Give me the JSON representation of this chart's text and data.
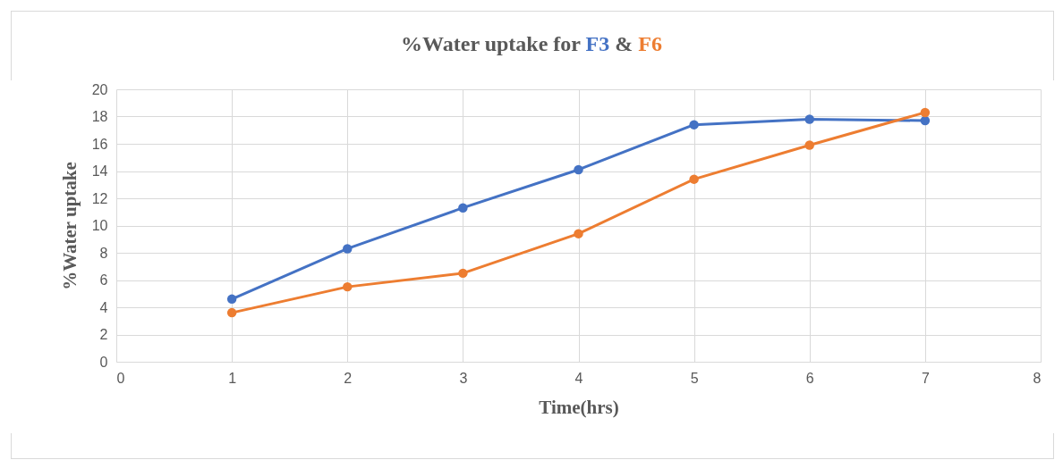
{
  "chart_data": {
    "type": "line",
    "title": "%Water uptake for",
    "annotations": [
      "&"
    ],
    "xlabel": "Time(hrs)",
    "ylabel": "%Water uptake",
    "x": [
      1,
      2,
      3,
      4,
      5,
      6,
      7
    ],
    "series": [
      {
        "name": "F3",
        "color": "#4472c4",
        "values": [
          4.6,
          8.3,
          11.3,
          14.1,
          17.4,
          17.8,
          17.7
        ]
      },
      {
        "name": "F6",
        "color": "#ed7d31",
        "values": [
          3.6,
          5.5,
          6.5,
          9.4,
          13.4,
          15.9,
          18.3
        ]
      }
    ],
    "xlim": [
      0,
      8
    ],
    "xticks": [
      0,
      1,
      2,
      3,
      4,
      5,
      6,
      7,
      8
    ],
    "ylim": [
      0,
      20
    ],
    "yticks": [
      0,
      2,
      4,
      6,
      8,
      10,
      12,
      14,
      16,
      18,
      20
    ],
    "grid": true,
    "marker": "circle",
    "line_style": "solid"
  }
}
